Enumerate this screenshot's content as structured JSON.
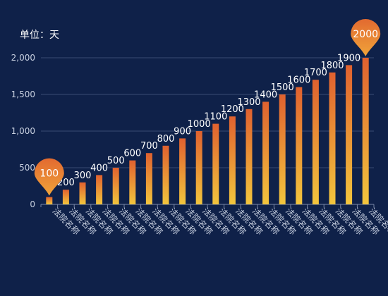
{
  "unit_label": "单位：天",
  "chart_data": {
    "type": "bar",
    "categories": [
      "法院名称",
      "法院名称",
      "法院名称",
      "法院名称",
      "法院名称",
      "法院名称",
      "法院名称",
      "法院名称",
      "法院名称",
      "法院名称",
      "法院名称",
      "法院名称",
      "法院名称",
      "法院名称",
      "法院名称",
      "法院名称",
      "法院名称",
      "法院名称",
      "法院名称",
      "法院名称"
    ],
    "values": [
      100,
      200,
      300,
      400,
      500,
      600,
      700,
      800,
      900,
      1000,
      1100,
      1200,
      1300,
      1400,
      1500,
      1600,
      1700,
      1800,
      1900,
      2000
    ],
    "data_labels": [
      "100",
      "200",
      "300",
      "400",
      "500",
      "600",
      "700",
      "800",
      "900",
      "1000",
      "1100",
      "1200",
      "1300",
      "1400",
      "1500",
      "1600",
      "1700",
      "1800",
      "1900",
      "2000"
    ],
    "y_ticks": [
      0,
      500,
      1000,
      1500,
      2000
    ],
    "y_tick_labels": [
      "0",
      "500",
      "1,000",
      "1,500",
      "2,000"
    ],
    "ylim": [
      0,
      2000
    ],
    "grid": true,
    "markers": [
      "min",
      "max"
    ],
    "colors": {
      "bar_top": "#e0612f",
      "bar_bottom": "#f2c53d",
      "pin_top": "#e26a30",
      "pin_bottom": "#f0a43a",
      "background": "#0f2149"
    }
  }
}
